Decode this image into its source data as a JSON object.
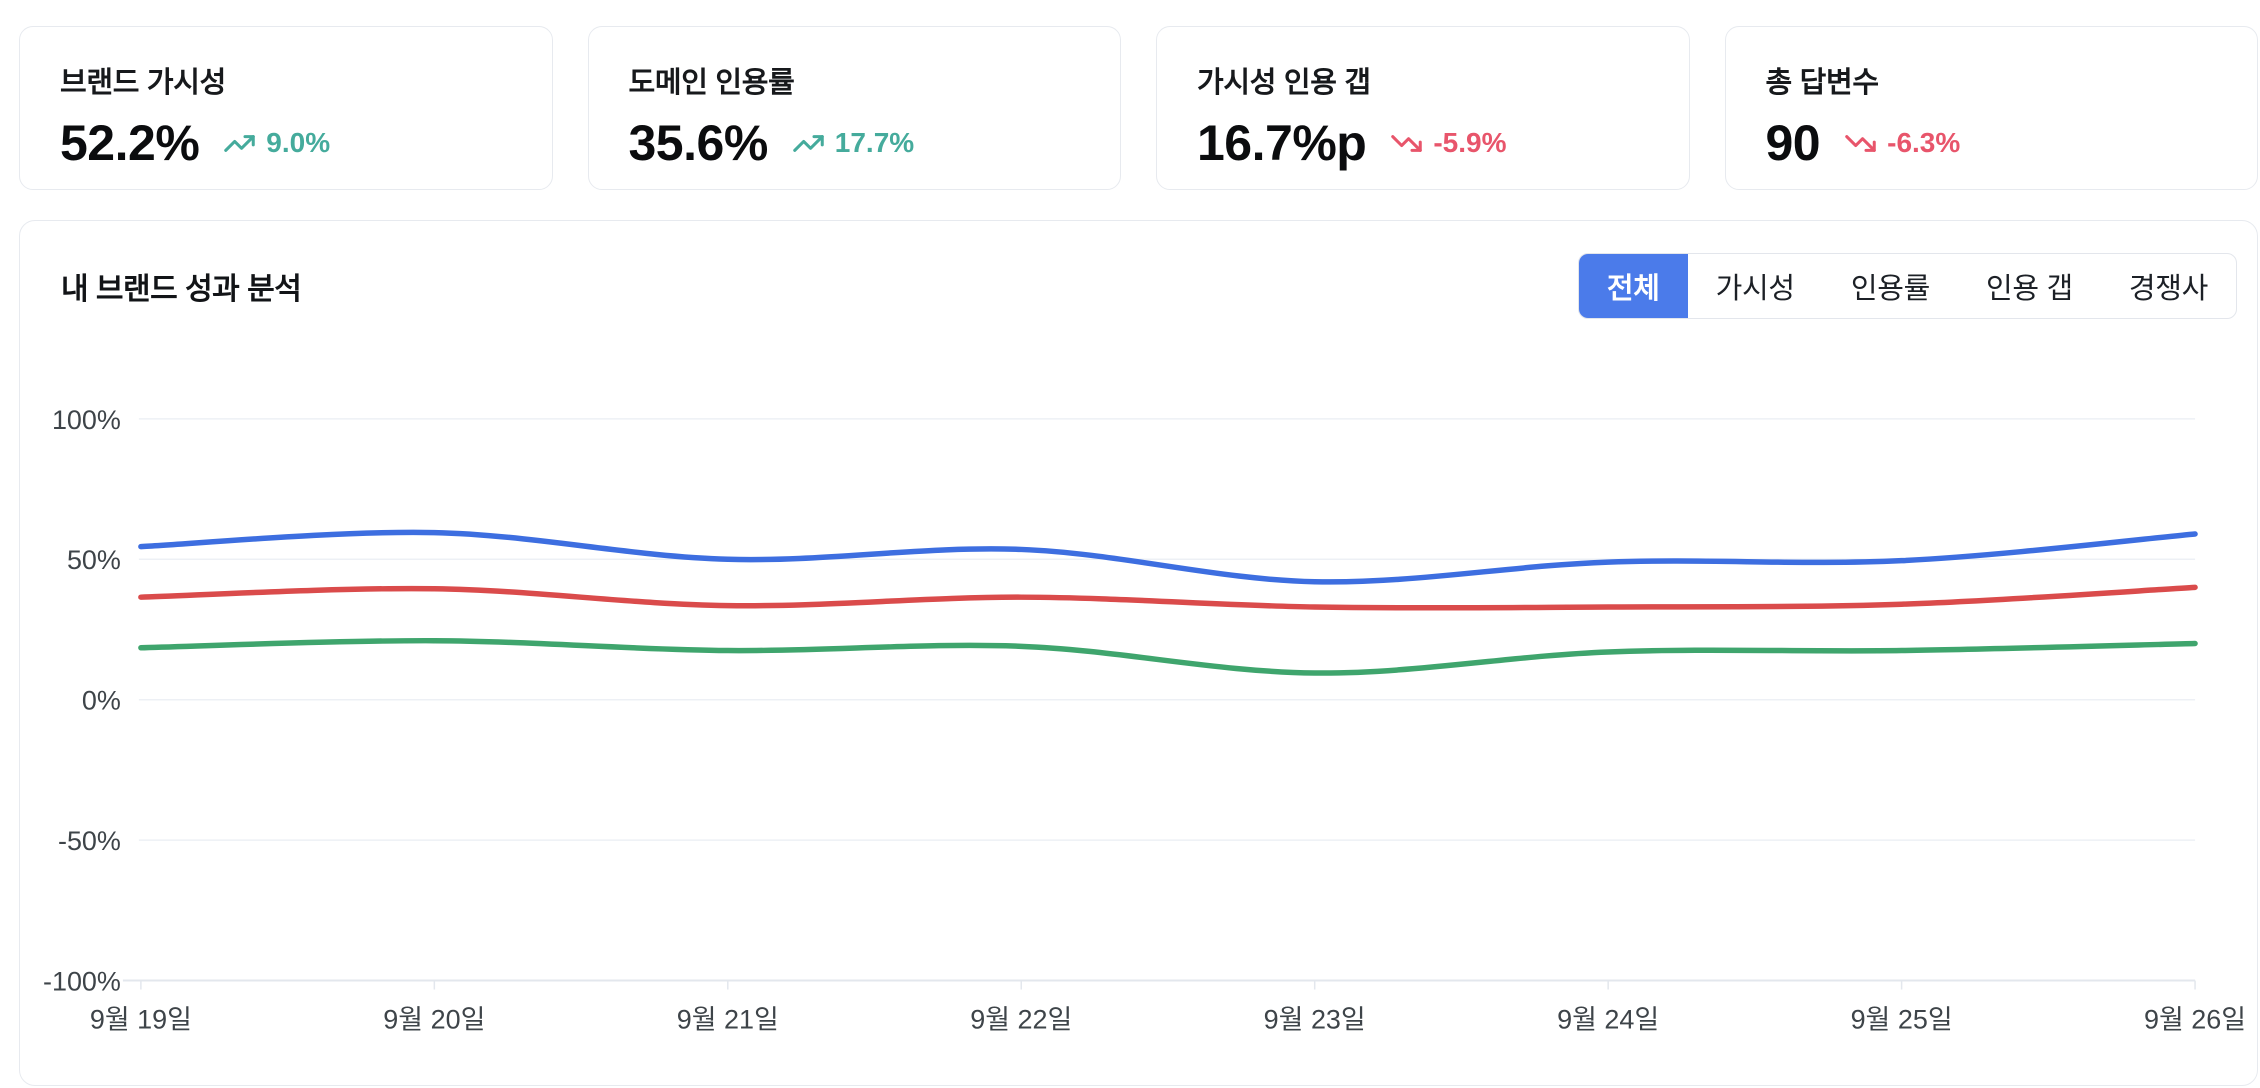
{
  "cards": [
    {
      "label": "브랜드 가시성",
      "value": "52.2%",
      "trend": "9.0%",
      "direction": "up"
    },
    {
      "label": "도메인 인용률",
      "value": "35.6%",
      "trend": "17.7%",
      "direction": "up"
    },
    {
      "label": "가시성 인용 갭",
      "value": "16.7%p",
      "trend": "-5.9%",
      "direction": "down"
    },
    {
      "label": "총 답변수",
      "value": "90",
      "trend": "-6.3%",
      "direction": "down"
    }
  ],
  "panel": {
    "title": "내 브랜드 성과 분석",
    "tabs": [
      {
        "label": "전체",
        "active": true
      },
      {
        "label": "가시성",
        "active": false
      },
      {
        "label": "인용률",
        "active": false
      },
      {
        "label": "인용 갭",
        "active": false
      },
      {
        "label": "경쟁사",
        "active": false
      }
    ]
  },
  "colors": {
    "accent_blue": "#4b7bea",
    "trend_up": "#45ab9c",
    "trend_down": "#e8556b",
    "border": "#e7eaef",
    "grid": "#edf0f5",
    "axis": "#e3e7ed",
    "text_axis": "#3e4449",
    "line_blue": "#3d6ee0",
    "line_red": "#da4b4b",
    "line_green": "#3fa56d"
  },
  "chart_data": {
    "type": "line",
    "x_labels": [
      "9월 19일",
      "9월 20일",
      "9월 21일",
      "9월 22일",
      "9월 23일",
      "9월 24일",
      "9월 25일",
      "9월 26일"
    ],
    "ylim": [
      -100,
      100
    ],
    "yticks": [
      100,
      50,
      0,
      -50,
      -100
    ],
    "ytick_labels": [
      "100%",
      "50%",
      "0%",
      "-50%",
      "-100%"
    ],
    "grid": true,
    "legend": "none",
    "smooth": true,
    "series": [
      {
        "name": "브랜드 가시성",
        "color": "#3d6ee0",
        "values": [
          54.5,
          59.5,
          50.0,
          53.5,
          42.0,
          49.0,
          49.5,
          59.0
        ]
      },
      {
        "name": "도메인 인용률",
        "color": "#da4b4b",
        "values": [
          36.5,
          39.5,
          33.5,
          36.5,
          33.0,
          33.0,
          34.0,
          40.0
        ]
      },
      {
        "name": "가시성 인용 갭",
        "color": "#3fa56d",
        "values": [
          18.5,
          21.0,
          17.5,
          19.0,
          9.5,
          17.0,
          17.5,
          20.0
        ]
      }
    ]
  }
}
